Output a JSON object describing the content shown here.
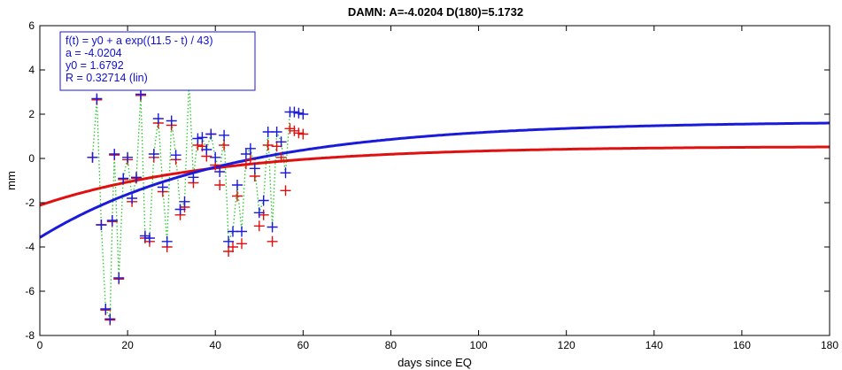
{
  "chart_data": {
    "type": "scatter",
    "title": "DAMN: A=-4.0204  D(180)=5.1732",
    "xlabel": "days since EQ",
    "ylabel": "mm",
    "xlim": [
      0,
      180
    ],
    "ylim": [
      -8,
      6
    ],
    "xticks": [
      0,
      20,
      40,
      60,
      80,
      100,
      120,
      140,
      160,
      180
    ],
    "yticks": [
      -8,
      -6,
      -4,
      -2,
      0,
      2,
      4,
      6
    ],
    "xtick_labels": [
      "0",
      "20",
      "40",
      "60",
      "80",
      "100",
      "120",
      "140",
      "160",
      "180"
    ],
    "ytick_labels": [
      "-8",
      "-6",
      "-4",
      "-2",
      "0",
      "2",
      "4",
      "6"
    ],
    "grid": false,
    "legend": {
      "position": "top-left",
      "lines": [
        "f(t) = y0 + a exp((11.5 - t) / 43)",
        "a = -4.0204",
        "y0 = 1.6792",
        "R = 0.32714  (lin)"
      ]
    },
    "colors": {
      "blue": "#1a1adc",
      "red": "#e01010",
      "green": "#22cc22"
    },
    "fits": [
      {
        "color": "#1a1adc",
        "y0": 1.6792,
        "a": -4.0204,
        "tau": 43,
        "t0": 11.5
      },
      {
        "color": "#e01010",
        "y0": 0.55,
        "a": -2.0,
        "tau": 40,
        "t0": 11.5
      }
    ],
    "series": [
      {
        "marker": "+",
        "color": "#1a1adc",
        "connect": "#22cc22",
        "x": [
          12,
          13,
          14,
          15,
          16,
          16.5,
          17,
          18,
          19,
          20,
          21,
          22,
          23,
          24,
          25,
          26,
          27,
          28,
          29,
          30,
          31,
          32,
          33,
          34,
          35,
          36,
          37,
          38,
          39,
          40,
          41,
          42,
          43,
          44,
          45,
          46,
          47,
          48,
          49,
          50,
          51,
          52,
          53,
          54,
          55,
          56,
          57,
          58,
          59,
          60
        ],
        "y": [
          0.05,
          2.7,
          -3.0,
          -6.8,
          -7.25,
          -2.8,
          0.2,
          -5.4,
          -0.9,
          0.05,
          -1.8,
          -0.85,
          2.9,
          -3.5,
          -3.6,
          0.2,
          1.8,
          -1.3,
          -3.75,
          1.7,
          0.15,
          -2.3,
          -1.95,
          3.55,
          -0.85,
          0.9,
          0.95,
          0.4,
          1.1,
          0.05,
          -0.6,
          1.05,
          -3.75,
          -3.3,
          -1.2,
          -3.3,
          0.2,
          0.45,
          -0.45,
          -2.45,
          -1.9,
          1.2,
          -3.1,
          1.2,
          0.75,
          -0.65,
          2.1,
          2.1,
          2.05,
          2.0
        ]
      },
      {
        "marker": "+",
        "color": "#e01010",
        "x": [
          12,
          13,
          14,
          15,
          16,
          16.5,
          17,
          18,
          19,
          20,
          21,
          22,
          23,
          24,
          25,
          26,
          27,
          28,
          29,
          30,
          31,
          32,
          33,
          34,
          35,
          36,
          37,
          38,
          39,
          40,
          41,
          42,
          43,
          44,
          45,
          46,
          47,
          48,
          49,
          50,
          51,
          52,
          53,
          54,
          55,
          56,
          57,
          58,
          59,
          60
        ],
        "y": [
          0.05,
          2.65,
          -3.0,
          -6.85,
          -7.3,
          -2.85,
          0.15,
          -5.45,
          -0.95,
          -0.05,
          -1.95,
          -0.9,
          2.85,
          -3.6,
          -3.75,
          0.05,
          1.6,
          -1.5,
          -4.0,
          1.5,
          -0.05,
          -2.55,
          -2.2,
          3.5,
          -1.1,
          0.6,
          0.55,
          0.1,
          1.1,
          -0.3,
          -1.2,
          0.6,
          -4.2,
          -4.0,
          -1.7,
          -3.85,
          -0.25,
          -0.05,
          -0.8,
          -3.05,
          -2.55,
          0.6,
          -3.75,
          0.55,
          0.05,
          -1.45,
          1.35,
          1.25,
          1.15,
          1.1
        ]
      }
    ]
  }
}
